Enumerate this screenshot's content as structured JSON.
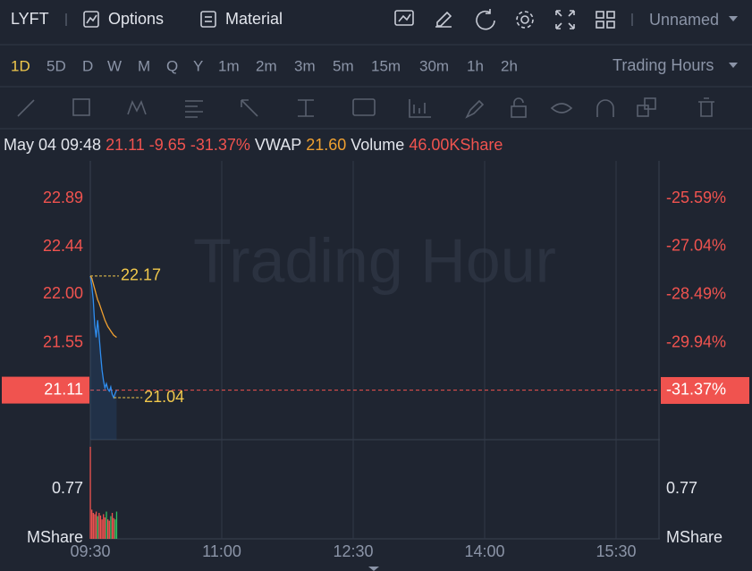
{
  "header": {
    "symbol": "LYFT",
    "options": "Options",
    "material": "Material",
    "layout_name": "Unnamed"
  },
  "periods": [
    "1D",
    "5D",
    "D",
    "W",
    "M",
    "Q",
    "Y",
    "1m",
    "2m",
    "3m",
    "5m",
    "15m",
    "30m",
    "1h",
    "2h"
  ],
  "session": "Trading Hours",
  "info": {
    "time": "May 04 09:48",
    "price": "21.11",
    "change": "-9.65",
    "change_pct": "-31.37%",
    "vwap_label": "VWAP",
    "vwap": "21.60",
    "volume_label": "Volume",
    "volume": "46.00KShare"
  },
  "chart_data": {
    "type": "intraday",
    "watermark": "Trading Hour",
    "x": [
      "09:30",
      "09:31",
      "09:32",
      "09:33",
      "09:34",
      "09:35",
      "09:36",
      "09:37",
      "09:38",
      "09:39",
      "09:40",
      "09:41",
      "09:42",
      "09:43",
      "09:44",
      "09:45",
      "09:46",
      "09:47",
      "09:48"
    ],
    "xlim": [
      "09:30",
      "16:00"
    ],
    "xticks": [
      "09:30",
      "11:00",
      "12:30",
      "14:00",
      "15:30"
    ],
    "series": [
      {
        "name": "Price",
        "color": "#2f8ef0",
        "values": [
          22.17,
          22.08,
          21.95,
          21.72,
          21.6,
          21.76,
          21.62,
          21.45,
          21.3,
          21.2,
          21.13,
          21.17,
          21.12,
          21.1,
          21.14,
          21.07,
          21.04,
          21.08,
          21.11
        ]
      },
      {
        "name": "VWAP",
        "color": "#f0a030",
        "values": [
          22.17,
          22.15,
          22.1,
          22.05,
          22.0,
          21.95,
          21.92,
          21.88,
          21.84,
          21.8,
          21.76,
          21.73,
          21.7,
          21.68,
          21.66,
          21.64,
          21.62,
          21.61,
          21.6
        ]
      }
    ],
    "ylim": [
      20.65,
      23.24
    ],
    "yticks": [
      22.89,
      22.44,
      {
        "value": 22,
        "label": "22.00"
      },
      21.55,
      21.11
    ],
    "y2lim": [
      -32.85,
      -24.46
    ],
    "y2ticks": [
      {
        "value": -25.59,
        "label": "-25.59%"
      },
      {
        "value": -27.04,
        "label": "-27.04%"
      },
      {
        "value": -28.49,
        "label": "-28.49%"
      },
      {
        "value": -29.94,
        "label": "-29.94%"
      },
      {
        "value": -31.37,
        "label": "-31.37%"
      }
    ],
    "annotations": [
      {
        "value": 22.17,
        "x": "09:30"
      },
      {
        "value": 21.04,
        "x": "09:46"
      }
    ],
    "volume": {
      "unit": "MShare",
      "values": [
        1.42,
        0.45,
        0.4,
        0.38,
        0.42,
        0.35,
        0.4,
        0.36,
        0.3,
        0.38,
        0.33,
        0.42,
        0.3,
        0.28,
        0.35,
        0.4,
        0.32,
        0.3,
        0.42
      ],
      "up_color": "#2fbf60",
      "down_color": "#f0534f",
      "ylim": [
        0,
        1.53
      ],
      "yticks": [
        0.77
      ]
    }
  }
}
